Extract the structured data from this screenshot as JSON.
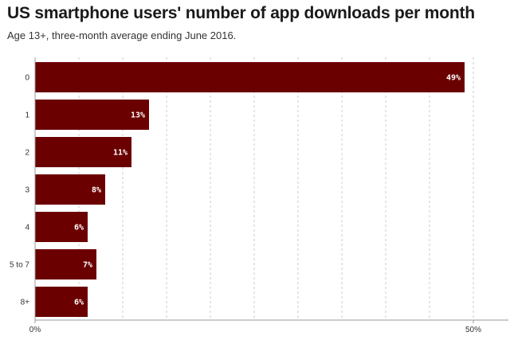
{
  "title": "US smartphone users' number of app downloads per month",
  "subtitle": "Age 13+, three-month average ending June 2016.",
  "colors": {
    "bar": "#6b0000",
    "grid": "#cccccc",
    "axis": "#999999"
  },
  "chart_data": {
    "type": "bar",
    "orientation": "horizontal",
    "title": "US smartphone users' number of app downloads per month",
    "subtitle": "Age 13+, three-month average ending June 2016.",
    "categories": [
      "0",
      "1",
      "2",
      "3",
      "4",
      "5 to 7",
      "8+"
    ],
    "values": [
      49,
      13,
      11,
      8,
      6,
      7,
      6
    ],
    "value_labels": [
      "49%",
      "13%",
      "11%",
      "8%",
      "6%",
      "7%",
      "6%"
    ],
    "xlim": [
      0,
      54
    ],
    "x_ticks": [
      0,
      50
    ],
    "x_tick_labels": [
      "0%",
      "50%"
    ],
    "x_gridlines": [
      5,
      10,
      15,
      20,
      25,
      30,
      35,
      40,
      45,
      50
    ],
    "xlabel": "",
    "ylabel": "",
    "grid": true,
    "legend": "none"
  }
}
